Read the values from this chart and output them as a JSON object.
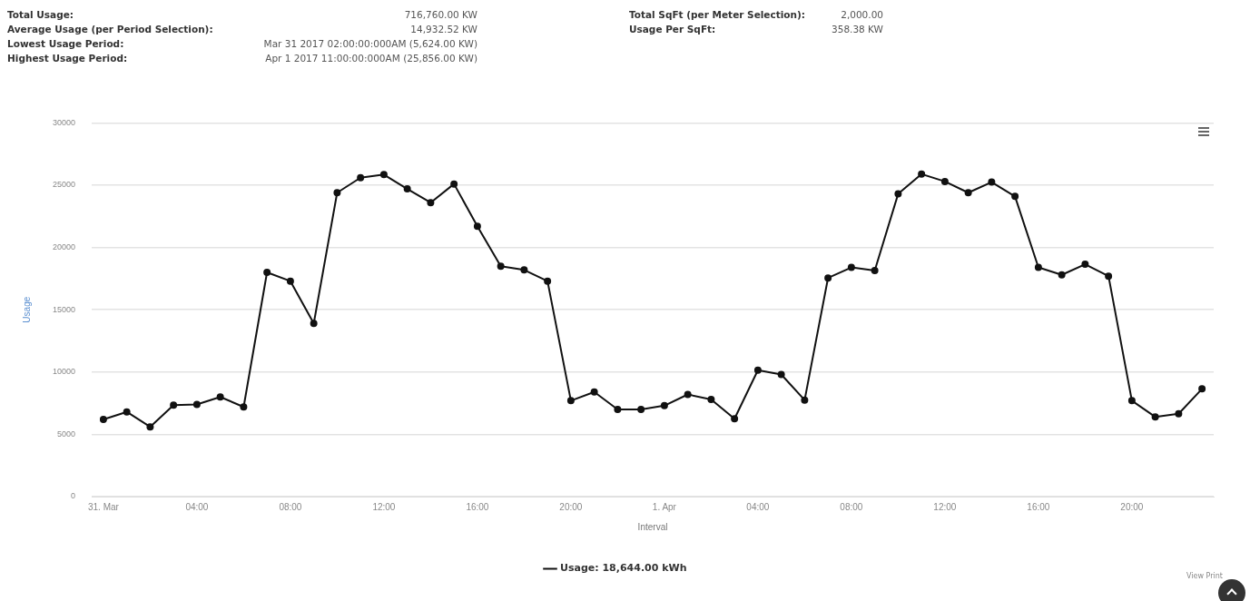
{
  "chart_data": {
    "type": "line",
    "annotations": [
      "Total Usage:",
      "716,760.00 KW",
      "Average Usage (per Period Selection):",
      "14,932.52 KW",
      "Lowest Usage Period:",
      "Mar 31 2017 02:00:00:000AM (5,624.00 KW)",
      "Highest Usage Period:",
      "Apr 1 2017 11:00:00:000AM (25,856.00 KW)",
      "Total SqFt (per Meter Selection):",
      "2,000.00",
      "Usage Per SqFt:",
      "358.38 KW",
      "View Print"
    ],
    "xlabel": "Interval",
    "ylabel": "Usage",
    "categories": [
      "31. Mar",
      null,
      null,
      null,
      "04:00",
      null,
      null,
      null,
      "08:00",
      null,
      null,
      null,
      "12:00",
      null,
      null,
      null,
      "16:00",
      null,
      null,
      null,
      "20:00",
      null,
      null,
      null,
      "1. Apr",
      null,
      null,
      null,
      "04:00",
      null,
      null,
      null,
      "08:00",
      null,
      null,
      null,
      "12:00",
      null,
      null,
      null,
      "16:00",
      null,
      null,
      null,
      "20:00",
      null,
      null,
      null
    ],
    "series": [
      {
        "name": "Usage: 18,644.00 kWh",
        "color": "#111111",
        "values": [
          6200,
          6800,
          5600,
          7350,
          7400,
          8000,
          7200,
          18000,
          17300,
          13900,
          24400,
          25600,
          25850,
          24700,
          23600,
          25100,
          21700,
          18500,
          18200,
          17300,
          7700,
          8400,
          7000,
          7000,
          7300,
          8200,
          7800,
          6250,
          10150,
          9800,
          7750,
          17550,
          18400,
          18150,
          24300,
          25900,
          25300,
          24400,
          25250,
          24100,
          18400,
          17800,
          18650,
          17700,
          7700,
          6400,
          6650,
          8650
        ]
      }
    ],
    "ylim": [
      0,
      30000
    ],
    "yticks": [
      0,
      5000,
      10000,
      15000,
      20000,
      25000,
      30000
    ],
    "grid": "y",
    "legend": "bottom",
    "marker": "circle",
    "line_style": "solid"
  }
}
